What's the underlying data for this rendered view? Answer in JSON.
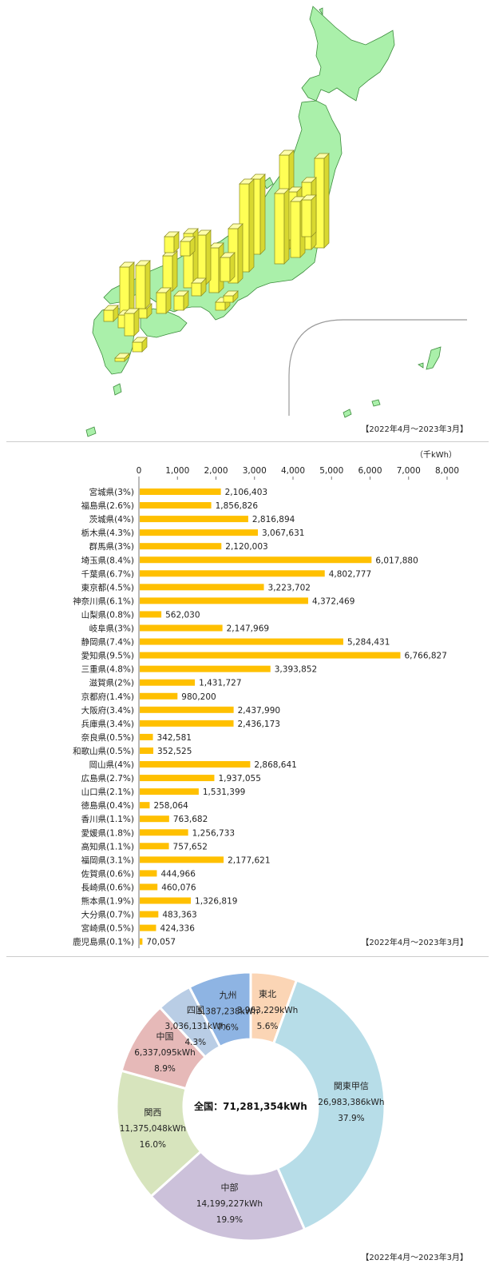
{
  "period_label": "【2022年4月～2023年3月】",
  "map": {
    "land_color": "#aaf0aa",
    "bar_color": "#ffff55"
  },
  "chart_data": [
    {
      "type": "bar",
      "orientation": "horizontal",
      "unit_label": "（千kWh）",
      "xlim": [
        0,
        8000
      ],
      "xticks": [
        0,
        1000,
        2000,
        3000,
        4000,
        5000,
        6000,
        7000,
        8000
      ],
      "xtick_labels": [
        "0",
        "1,000",
        "2,000",
        "3,000",
        "4,000",
        "5,000",
        "6,000",
        "7,000",
        "8,000"
      ],
      "bar_color": "#ffc000",
      "categories": [
        "宮城県(3%)",
        "福島県(2.6%)",
        "茨城県(4%)",
        "栃木県(4.3%)",
        "群馬県(3%)",
        "埼玉県(8.4%)",
        "千葉県(6.7%)",
        "東京都(4.5%)",
        "神奈川県(6.1%)",
        "山梨県(0.8%)",
        "岐阜県(3%)",
        "静岡県(7.4%)",
        "愛知県(9.5%)",
        "三重県(4.8%)",
        "滋賀県(2%)",
        "京都府(1.4%)",
        "大阪府(3.4%)",
        "兵庫県(3.4%)",
        "奈良県(0.5%)",
        "和歌山県(0.5%)",
        "岡山県(4%)",
        "広島県(2.7%)",
        "山口県(2.1%)",
        "徳島県(0.4%)",
        "香川県(1.1%)",
        "愛媛県(1.8%)",
        "高知県(1.1%)",
        "福岡県(3.1%)",
        "佐賀県(0.6%)",
        "長崎県(0.6%)",
        "熊本県(1.9%)",
        "大分県(0.7%)",
        "宮崎県(0.5%)",
        "鹿児島県(0.1%)"
      ],
      "values": [
        2106403,
        1856826,
        2816894,
        3067631,
        2120003,
        6017880,
        4802777,
        3223702,
        4372469,
        562030,
        2147969,
        5284431,
        6766827,
        3393852,
        1431727,
        980200,
        2437990,
        2436173,
        342581,
        352525,
        2868641,
        1937055,
        1531399,
        258064,
        763682,
        1256733,
        757652,
        2177621,
        444966,
        460076,
        1326819,
        483363,
        424336,
        70057
      ],
      "value_labels": [
        "2,106,403",
        "1,856,826",
        "2,816,894",
        "3,067,631",
        "2,120,003",
        "6,017,880",
        "4,802,777",
        "3,223,702",
        "4,372,469",
        "562,030",
        "2,147,969",
        "5,284,431",
        "6,766,827",
        "3,393,852",
        "1,431,727",
        "980,200",
        "2,437,990",
        "2,436,173",
        "342,581",
        "352,525",
        "2,868,641",
        "1,937,055",
        "1,531,399",
        "258,064",
        "763,682",
        "1,256,733",
        "757,652",
        "2,177,621",
        "444,966",
        "460,076",
        "1,326,819",
        "483,363",
        "424,336",
        "70,057"
      ]
    },
    {
      "type": "pie",
      "style": "donut",
      "center_label": "全国：71,281,354kWh",
      "slices": [
        {
          "name": "東北",
          "value": 3963229,
          "value_label": "3,963,229kWh",
          "percent": "5.6%",
          "color": "#fbd5b5"
        },
        {
          "name": "関東甲信",
          "value": 26983386,
          "value_label": "26,983,386kWh",
          "percent": "37.9%",
          "color": "#b7dde8"
        },
        {
          "name": "中部",
          "value": 14199227,
          "value_label": "14,199,227kWh",
          "percent": "19.9%",
          "color": "#ccc1da"
        },
        {
          "name": "関西",
          "value": 11375048,
          "value_label": "11,375,048kWh",
          "percent": "16.0%",
          "color": "#d7e4bd"
        },
        {
          "name": "中国",
          "value": 6337095,
          "value_label": "6,337,095kWh",
          "percent": "8.9%",
          "color": "#e6b9b8"
        },
        {
          "name": "四国",
          "value": 3036131,
          "value_label": "3,036,131kWh",
          "percent": "4.3%",
          "color": "#b9cde5"
        },
        {
          "name": "九州",
          "value": 5387238,
          "value_label": "5,387,238kWh",
          "percent": "7.6%",
          "color": "#8eb4e3"
        }
      ]
    }
  ]
}
